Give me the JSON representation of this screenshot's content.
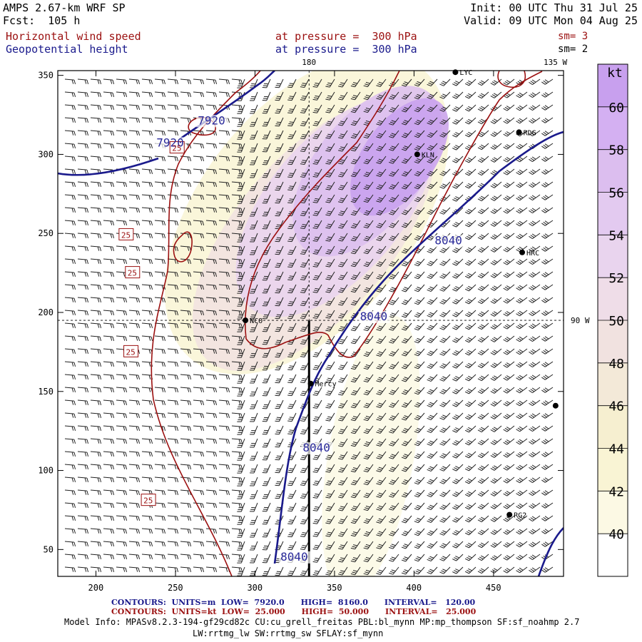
{
  "header": {
    "title": "AMPS 2.67-km WRF SP",
    "forecast": "Fcst:  105 h",
    "init": "Init: 00 UTC Thu 31 Jul 25",
    "valid": "Valid: 09 UTC Mon 04 Aug 25"
  },
  "fields": [
    {
      "name": "Horizontal wind speed",
      "level": "at pressure =  300 hPa",
      "smooth": "sm= 3"
    },
    {
      "name": "Geopotential height",
      "level": "at pressure =  300 hPa",
      "smooth": "sm= 2"
    }
  ],
  "axes": {
    "x_ticks": [
      "200",
      "250",
      "300",
      "350",
      "400",
      "450"
    ],
    "x_values": [
      200,
      250,
      300,
      350,
      400,
      450
    ],
    "y_ticks": [
      "50",
      "100",
      "150",
      "200",
      "250",
      "300",
      "350"
    ],
    "y_values": [
      50,
      100,
      150,
      200,
      250,
      300,
      350
    ],
    "x_range": [
      176,
      494
    ],
    "y_range": [
      33,
      353
    ]
  },
  "gridlines": {
    "lon_label": "180",
    "lon_east_label": "135 W",
    "lat_label": "90 W"
  },
  "stations": [
    {
      "id": "KLN",
      "x": 402,
      "y": 300
    },
    {
      "id": "RDG",
      "x": 466,
      "y": 314
    },
    {
      "id": "HRC",
      "x": 468,
      "y": 238
    },
    {
      "id": "NCO",
      "x": 294,
      "y": 195
    },
    {
      "id": "Mercy",
      "x": 335,
      "y": 155
    },
    {
      "id": "RG2",
      "x": 460,
      "y": 72
    },
    {
      "id": "LYC",
      "x": 426,
      "y": 352
    },
    {
      "id": "",
      "x": 489,
      "y": 141
    }
  ],
  "height_contour_labels": [
    {
      "text": "7920",
      "x": 264,
      "y": 319
    },
    {
      "text": "7920",
      "x": 238,
      "y": 305
    },
    {
      "text": "8040",
      "x": 413,
      "y": 243
    },
    {
      "text": "8040",
      "x": 366,
      "y": 195
    },
    {
      "text": "8040",
      "x": 330,
      "y": 112
    },
    {
      "text": "8040",
      "x": 316,
      "y": 43
    }
  ],
  "speed_contour_labels": [
    {
      "text": "25",
      "x": 251,
      "y": 304
    },
    {
      "text": "25",
      "x": 219,
      "y": 249
    },
    {
      "text": "25",
      "x": 223,
      "y": 225
    },
    {
      "text": "25",
      "x": 222,
      "y": 175
    },
    {
      "text": "25",
      "x": 233,
      "y": 81
    }
  ],
  "colorbar": {
    "unit": "kt",
    "labels": [
      "60",
      "58",
      "56",
      "54",
      "52",
      "50",
      "48",
      "46",
      "44",
      "42",
      "40"
    ],
    "colors": [
      "#c8a0ee",
      "#d4b0f2",
      "#dcbeef",
      "#e3caf0",
      "#e9d4ee",
      "#efdde8",
      "#f1e2e0",
      "#f3e9d8",
      "#f6efd0",
      "#f9f4d4",
      "#fcf9e4",
      "#ffffff"
    ]
  },
  "footer": {
    "contours_1": "CONTOURS:  UNITS=m  LOW=  7920.0      HIGH=  8160.0      INTERVAL=   120.00",
    "contours_2": "CONTOURS:  UNITS=kt  LOW=  25.000      HIGH=  50.000      INTERVAL=   25.000",
    "info_1": "Model Info: MPASv8.2.3-194-gf29cd82c CU:cu_grell_freitas PBL:bl_mynn MP:mp_thompson SF:sf_noahmp 2.7",
    "info_2": "LW:rrtmg_lw SW:rrtmg_sw SFLAY:sf_mynn"
  }
}
